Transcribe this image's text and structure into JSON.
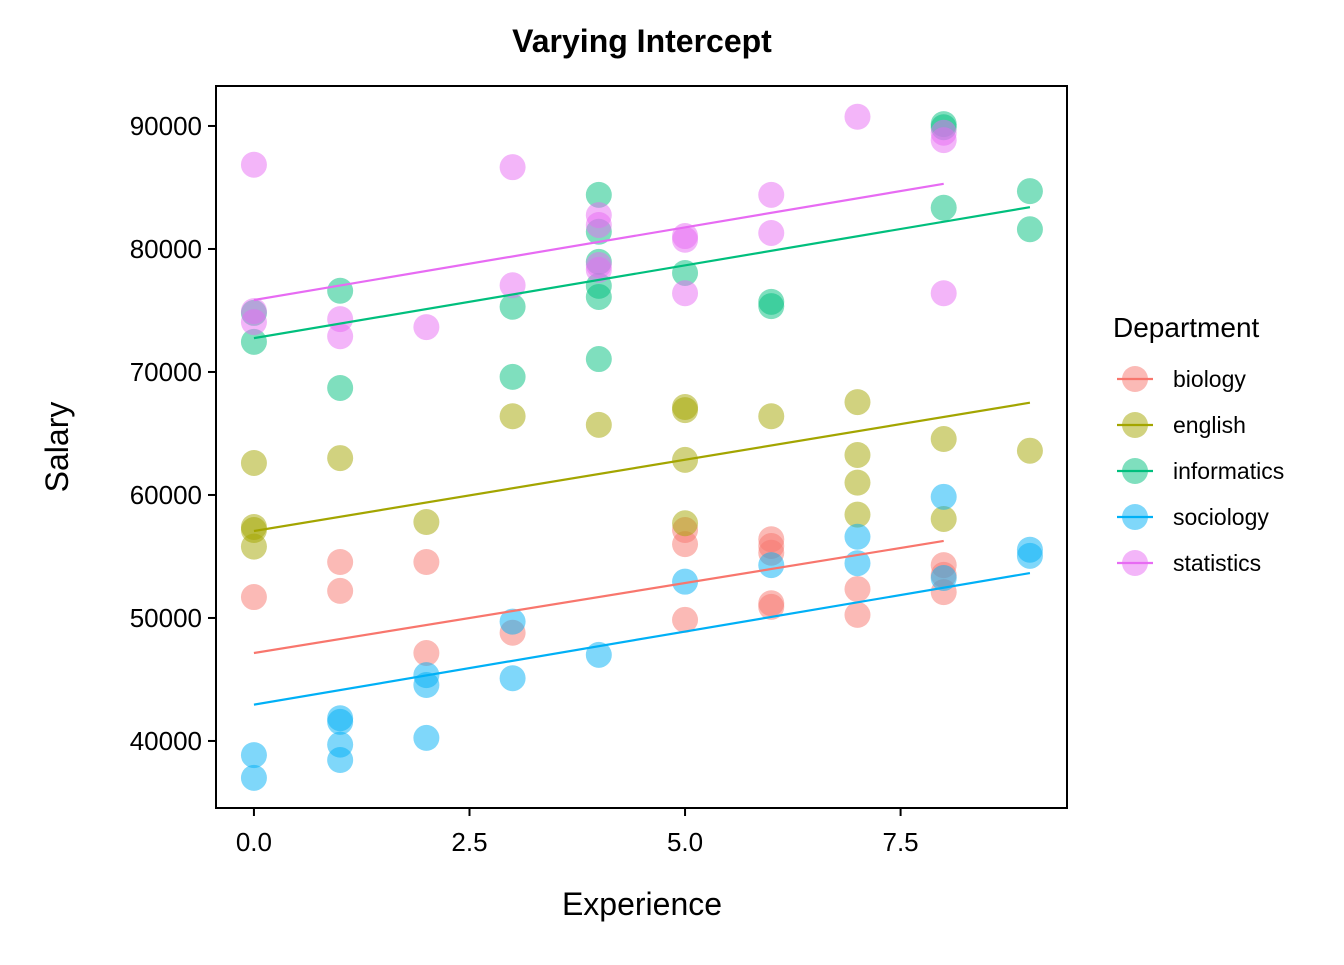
{
  "chart_data": {
    "type": "scatter",
    "title": "Varying Intercept",
    "xlabel": "Experience",
    "ylabel": "Salary",
    "xlim": [
      -0.44,
      9.43
    ],
    "ylim": [
      34550,
      93250
    ],
    "xticks": [
      0,
      2.5,
      5,
      7.5
    ],
    "xtick_labels": [
      "0.0",
      "2.5",
      "5.0",
      "7.5"
    ],
    "yticks": [
      40000,
      50000,
      60000,
      70000,
      80000,
      90000
    ],
    "ytick_labels": [
      "40000",
      "50000",
      "60000",
      "70000",
      "80000",
      "90000"
    ],
    "grid": false,
    "legend": {
      "title": "Department",
      "placement": "right"
    },
    "series": [
      {
        "name": "biology",
        "color": "#F8766D",
        "points": [
          [
            0,
            51700
          ],
          [
            1,
            54550
          ],
          [
            1,
            52200
          ],
          [
            2,
            54550
          ],
          [
            2,
            47150
          ],
          [
            3,
            48800
          ],
          [
            5,
            57150
          ],
          [
            5,
            56000
          ],
          [
            5,
            49850
          ],
          [
            6,
            56400
          ],
          [
            6,
            55850
          ],
          [
            6,
            55300
          ],
          [
            6,
            51200
          ],
          [
            6,
            50900
          ],
          [
            7,
            52350
          ],
          [
            7,
            50250
          ],
          [
            8,
            54300
          ],
          [
            8,
            53500
          ],
          [
            8,
            52100
          ]
        ],
        "fit": [
          [
            0,
            47150
          ],
          [
            8,
            56260
          ]
        ]
      },
      {
        "name": "english",
        "color": "#A3A500",
        "points": [
          [
            0,
            62600
          ],
          [
            0,
            57400
          ],
          [
            0,
            57150
          ],
          [
            0,
            55800
          ],
          [
            1,
            63000
          ],
          [
            2,
            57800
          ],
          [
            3,
            66400
          ],
          [
            4,
            65700
          ],
          [
            5,
            67150
          ],
          [
            5,
            66900
          ],
          [
            5,
            62850
          ],
          [
            5,
            57700
          ],
          [
            6,
            66400
          ],
          [
            7,
            67550
          ],
          [
            7,
            63250
          ],
          [
            7,
            61000
          ],
          [
            7,
            58400
          ],
          [
            8,
            64550
          ],
          [
            8,
            58050
          ],
          [
            9,
            63600
          ]
        ],
        "fit": [
          [
            0,
            57070
          ],
          [
            9,
            67500
          ]
        ]
      },
      {
        "name": "informatics",
        "color": "#00BF7D",
        "points": [
          [
            0,
            72450
          ],
          [
            0,
            74800
          ],
          [
            1,
            76600
          ],
          [
            1,
            68700
          ],
          [
            3,
            75300
          ],
          [
            3,
            69600
          ],
          [
            4,
            84400
          ],
          [
            4,
            81400
          ],
          [
            4,
            78950
          ],
          [
            4,
            77000
          ],
          [
            4,
            76100
          ],
          [
            4,
            71050
          ],
          [
            5,
            78050
          ],
          [
            6,
            75700
          ],
          [
            6,
            75350
          ],
          [
            8,
            90150
          ],
          [
            8,
            89900
          ],
          [
            8,
            83350
          ],
          [
            9,
            84700
          ],
          [
            9,
            81600
          ]
        ],
        "fit": [
          [
            0,
            72750
          ],
          [
            9,
            83400
          ]
        ]
      },
      {
        "name": "sociology",
        "color": "#00B0F6",
        "points": [
          [
            0,
            38850
          ],
          [
            0,
            37000
          ],
          [
            1,
            41850
          ],
          [
            1,
            41550
          ],
          [
            1,
            39700
          ],
          [
            1,
            38450
          ],
          [
            2,
            45350
          ],
          [
            2,
            44550
          ],
          [
            2,
            40250
          ],
          [
            3,
            49700
          ],
          [
            3,
            45100
          ],
          [
            4,
            47000
          ],
          [
            5,
            52950
          ],
          [
            6,
            54300
          ],
          [
            7,
            56600
          ],
          [
            7,
            54450
          ],
          [
            8,
            59850
          ],
          [
            8,
            53250
          ],
          [
            9,
            55550
          ],
          [
            9,
            55050
          ]
        ],
        "fit": [
          [
            0,
            42950
          ],
          [
            9,
            53650
          ]
        ]
      },
      {
        "name": "statistics",
        "color": "#E76BF3",
        "points": [
          [
            0,
            86850
          ],
          [
            0,
            74950
          ],
          [
            0,
            74050
          ],
          [
            1,
            74300
          ],
          [
            1,
            72900
          ],
          [
            2,
            73650
          ],
          [
            3,
            86650
          ],
          [
            3,
            77050
          ],
          [
            4,
            82750
          ],
          [
            4,
            81950
          ],
          [
            4,
            78700
          ],
          [
            4,
            78300
          ],
          [
            5,
            81050
          ],
          [
            5,
            80750
          ],
          [
            5,
            76400
          ],
          [
            6,
            84400
          ],
          [
            6,
            81300
          ],
          [
            7,
            90750
          ],
          [
            8,
            89450
          ],
          [
            8,
            88850
          ],
          [
            8,
            76400
          ]
        ],
        "fit": [
          [
            0,
            75850
          ],
          [
            8,
            85300
          ]
        ]
      }
    ]
  }
}
